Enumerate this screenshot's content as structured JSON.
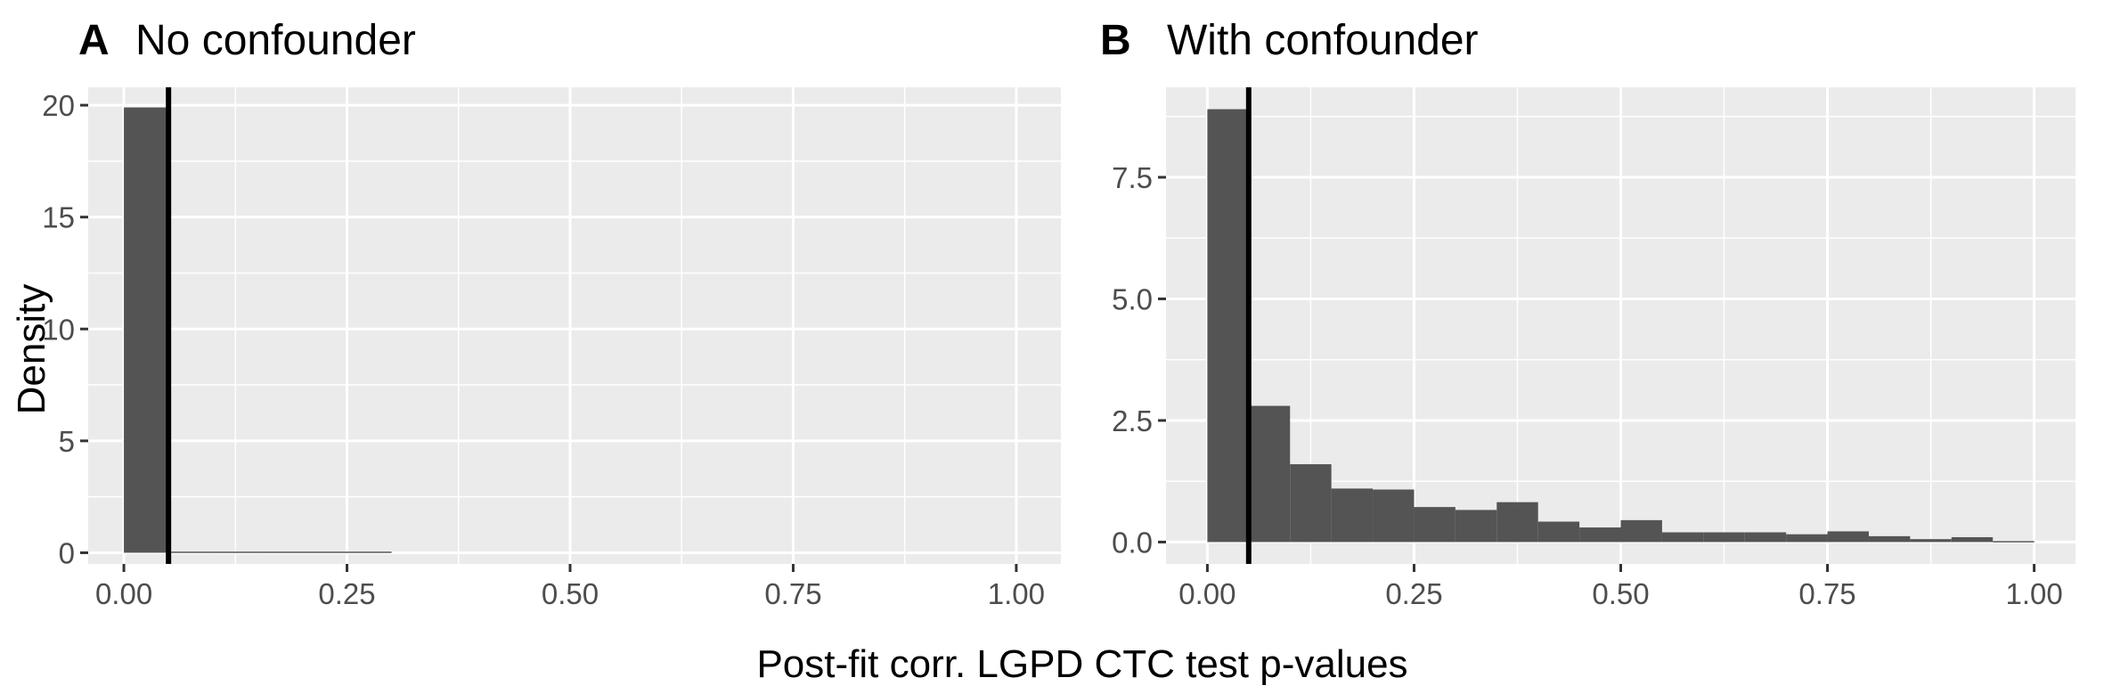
{
  "figure": {
    "ylabel": "Density",
    "xlabel": "Post-fit corr. LGPD CTC test p-values"
  },
  "chart_data": [
    {
      "type": "bar",
      "panel": "A",
      "title": "No confounder",
      "bin_width": 0.05,
      "bin_starts": [
        0.0,
        0.05,
        0.1,
        0.15,
        0.2,
        0.25
      ],
      "values": [
        19.9,
        0.05,
        0.05,
        0.05,
        0.05,
        0.05
      ],
      "xlim": [
        -0.04,
        1.05
      ],
      "ylim": [
        -0.5,
        20.8
      ],
      "xticks": [
        0.0,
        0.25,
        0.5,
        0.75,
        1.0
      ],
      "xtick_labels": [
        "0.00",
        "0.25",
        "0.50",
        "0.75",
        "1.00"
      ],
      "yticks": [
        0,
        5,
        10,
        15,
        20
      ],
      "ytick_labels": [
        "0",
        "5",
        "10",
        "15",
        "20"
      ],
      "vline": 0.05,
      "grid": true
    },
    {
      "type": "bar",
      "panel": "B",
      "title": "With confounder",
      "bin_width": 0.05,
      "bin_starts": [
        0.0,
        0.05,
        0.1,
        0.15,
        0.2,
        0.25,
        0.3,
        0.35,
        0.4,
        0.45,
        0.5,
        0.55,
        0.6,
        0.65,
        0.7,
        0.75,
        0.8,
        0.85,
        0.9,
        0.95
      ],
      "values": [
        8.9,
        2.8,
        1.6,
        1.1,
        1.08,
        0.72,
        0.66,
        0.82,
        0.42,
        0.3,
        0.45,
        0.2,
        0.2,
        0.2,
        0.16,
        0.22,
        0.12,
        0.06,
        0.1,
        0.02
      ],
      "xlim": [
        -0.05,
        1.05
      ],
      "ylim": [
        -0.45,
        9.35
      ],
      "xticks": [
        0.0,
        0.25,
        0.5,
        0.75,
        1.0
      ],
      "xtick_labels": [
        "0.00",
        "0.25",
        "0.50",
        "0.75",
        "1.00"
      ],
      "yticks": [
        0,
        2.5,
        5,
        7.5
      ],
      "ytick_labels": [
        "0.0",
        "2.5",
        "5.0",
        "7.5"
      ],
      "vline": 0.05,
      "grid": true
    }
  ]
}
